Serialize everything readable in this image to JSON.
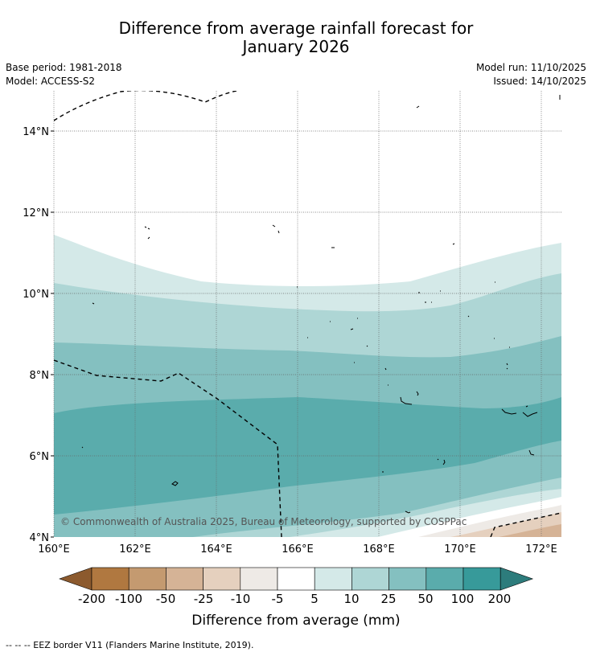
{
  "title": {
    "line1": "Difference from average rainfall forecast for",
    "line2": "January 2026"
  },
  "meta": {
    "base_period": "Base period: 1981-2018",
    "model": "Model: ACCESS-S2",
    "model_run": "Model run: 11/10/2025",
    "issued": "Issued: 14/10/2025"
  },
  "map": {
    "region_lon": [
      160,
      172.5
    ],
    "region_lat": [
      4,
      15
    ],
    "lat_ticks": [
      "4°N",
      "6°N",
      "8°N",
      "10°N",
      "12°N",
      "14°N"
    ],
    "lon_ticks": [
      "160°E",
      "162°E",
      "164°E",
      "166°E",
      "168°E",
      "170°E",
      "172°E"
    ],
    "copyright": "© Commonwealth of Australia 2025, Bureau of Meteorology, supported by COSPPac"
  },
  "colorbar": {
    "title": "Difference from average (mm)",
    "labels": [
      "-200",
      "-100",
      "-50",
      "-25",
      "-10",
      "-5",
      "5",
      "10",
      "25",
      "50",
      "100",
      "200"
    ],
    "colors": [
      "#8c5a2e",
      "#b07840",
      "#c49a70",
      "#d5b396",
      "#e5d0be",
      "#eeeae6",
      "#ffffff",
      "#d4e9e8",
      "#aed6d5",
      "#84c0c0",
      "#5aacac",
      "#379a9a",
      "#2d7c7c"
    ]
  },
  "footnote": "--  --  -- EEZ border V11 (Flanders Marine Institute, 2019)."
}
